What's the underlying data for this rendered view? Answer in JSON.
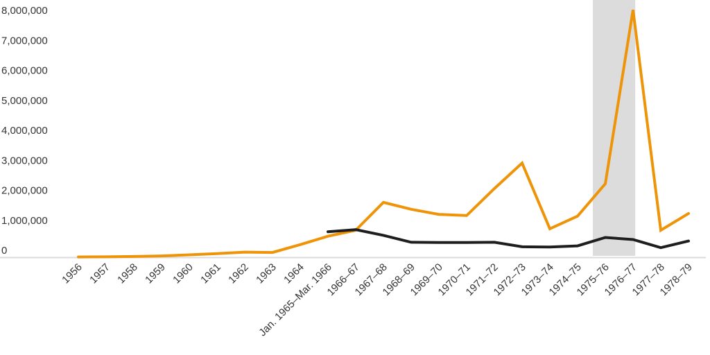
{
  "chart_data": {
    "type": "line",
    "title": "",
    "xlabel": "",
    "ylabel": "",
    "grid": "off",
    "legend": "none",
    "categories": [
      "1956",
      "1957",
      "1958",
      "1959",
      "1960",
      "1961",
      "1962",
      "1963",
      "1964",
      "Jan. 1965–Mar. 1966",
      "1966–67",
      "1967–68",
      "1968–69",
      "1969–70",
      "1970–71",
      "1971–72",
      "1972–73",
      "1973–74",
      "1974–75",
      "1975–76",
      "1976–77",
      "1977–78",
      "1978–79"
    ],
    "series": [
      {
        "name": "orange-line",
        "color": "#EE9408",
        "values": [
          10000,
          15000,
          25000,
          45000,
          80000,
          120000,
          170000,
          160000,
          420000,
          700000,
          900000,
          1830000,
          1600000,
          1430000,
          1390000,
          2290000,
          3140000,
          950000,
          1370000,
          2450000,
          8250000,
          900000,
          1460000
        ]
      },
      {
        "name": "black-line",
        "color": "#1E1E1E",
        "values": [
          null,
          null,
          null,
          null,
          null,
          null,
          null,
          null,
          null,
          850000,
          920000,
          730000,
          500000,
          490000,
          490000,
          500000,
          350000,
          340000,
          380000,
          660000,
          590000,
          320000,
          540000
        ]
      }
    ],
    "y_axis": {
      "min": 0,
      "max": 8000000,
      "ticks": [
        {
          "value": 0,
          "label": "0"
        },
        {
          "value": 1000000,
          "label": "1,000,000"
        },
        {
          "value": 2000000,
          "label": "2,000,000"
        },
        {
          "value": 3000000,
          "label": "3,000,000"
        },
        {
          "value": 4000000,
          "label": "4,000,000"
        },
        {
          "value": 5000000,
          "label": "5,000,000"
        },
        {
          "value": 6000000,
          "label": "6,000,000"
        },
        {
          "value": 7000000,
          "label": "7,000,000"
        },
        {
          "value": 8000000,
          "label": "8,000,000"
        }
      ]
    },
    "highlight_band": {
      "from_index": 18.55,
      "to_index": 20.08,
      "color": "#DCDCDC"
    },
    "axis_line_color": "#DBDBDB",
    "label_color": "#333333"
  }
}
